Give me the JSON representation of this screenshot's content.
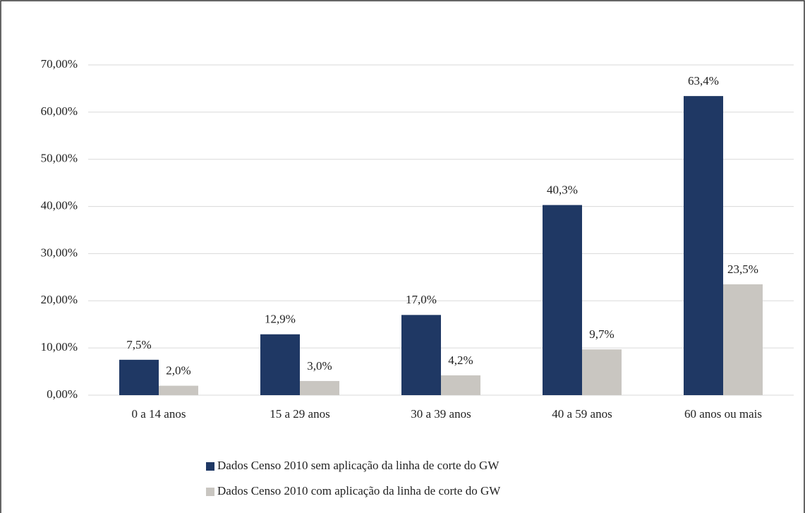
{
  "chart_data": {
    "type": "bar",
    "categories": [
      "0 a 14 anos",
      "15 a 29 anos",
      "30 a 39 anos",
      "40 a 59 anos",
      "60 anos ou mais"
    ],
    "series": [
      {
        "name": "Dados Censo 2010 sem aplicação da linha de corte do GW",
        "color": "#1f3864",
        "values": [
          7.5,
          12.9,
          17.0,
          40.3,
          63.4
        ],
        "value_labels": [
          "7,5%",
          "12,9%",
          "17,0%",
          "40,3%",
          "63,4%"
        ]
      },
      {
        "name": "Dados Censo 2010 com aplicação da linha de corte do GW",
        "color": "#c9c6c1",
        "values": [
          2.0,
          3.0,
          4.2,
          9.7,
          23.5
        ],
        "value_labels": [
          "2,0%",
          "3,0%",
          "4,2%",
          "9,7%",
          "23,5%"
        ]
      }
    ],
    "ylim": [
      0,
      70
    ],
    "yticks": [
      {
        "value": 0,
        "label": "0,00%"
      },
      {
        "value": 10,
        "label": "10,00%"
      },
      {
        "value": 20,
        "label": "20,00%"
      },
      {
        "value": 30,
        "label": "30,00%"
      },
      {
        "value": 40,
        "label": "40,00%"
      },
      {
        "value": 50,
        "label": "50,00%"
      },
      {
        "value": 60,
        "label": "60,00%"
      },
      {
        "value": 70,
        "label": "70,00%"
      }
    ],
    "grid": true,
    "legend": "bottom"
  }
}
